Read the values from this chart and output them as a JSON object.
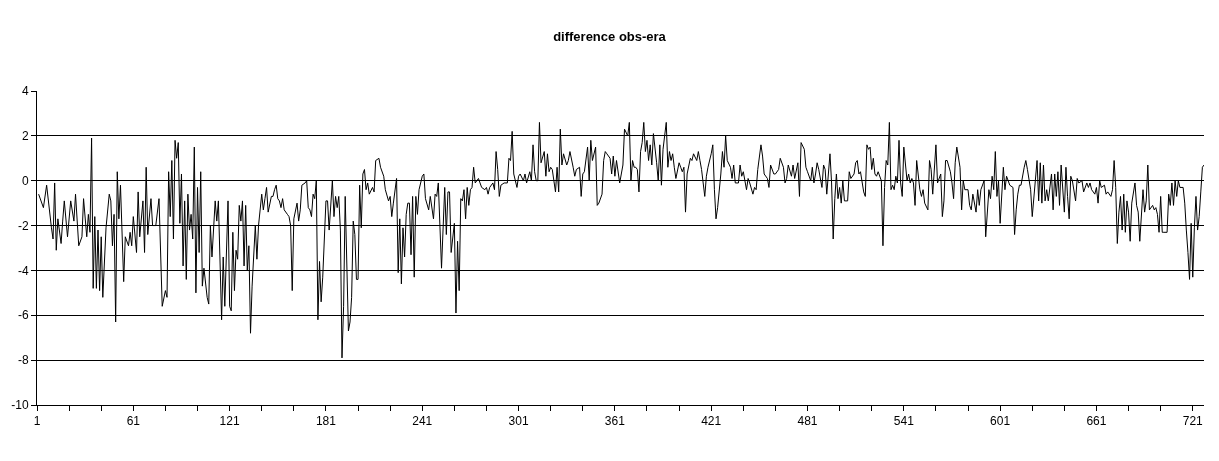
{
  "chart_data": {
    "type": "line",
    "title": "difference obs-era",
    "color": "#000000",
    "grid": "y",
    "marker": "none",
    "line_style": "solid",
    "xlim": [
      1,
      728
    ],
    "ylim": [
      -10,
      4
    ],
    "yticks": [
      -10,
      -8,
      -6,
      -4,
      -2,
      0,
      2,
      4
    ],
    "xticks": [
      1,
      {
        "value": 21,
        "label": null
      },
      {
        "value": 41,
        "label": null
      },
      61,
      {
        "value": 81,
        "label": null
      },
      {
        "value": 101,
        "label": null
      },
      121,
      {
        "value": 141,
        "label": null
      },
      {
        "value": 161,
        "label": null
      },
      181,
      {
        "value": 201,
        "label": null
      },
      {
        "value": 221,
        "label": null
      },
      241,
      {
        "value": 261,
        "label": null
      },
      {
        "value": 281,
        "label": null
      },
      301,
      {
        "value": 321,
        "label": null
      },
      {
        "value": 341,
        "label": null
      },
      361,
      {
        "value": 381,
        "label": null
      },
      {
        "value": 401,
        "label": null
      },
      421,
      {
        "value": 441,
        "label": null
      },
      {
        "value": 461,
        "label": null
      },
      481,
      {
        "value": 501,
        "label": null
      },
      {
        "value": 521,
        "label": null
      },
      541,
      {
        "value": 561,
        "label": null
      },
      {
        "value": 581,
        "label": null
      },
      601,
      {
        "value": 621,
        "label": null
      },
      {
        "value": 641,
        "label": null
      },
      661,
      {
        "value": 681,
        "label": null
      },
      {
        "value": 701,
        "label": null
      },
      721
    ],
    "x": [
      2,
      5,
      7,
      10,
      11,
      12,
      13,
      14,
      16,
      17,
      18,
      20,
      22,
      24,
      25,
      27,
      29,
      30,
      32,
      33,
      34,
      35,
      36,
      37,
      38,
      39,
      40,
      41,
      42,
      44,
      46,
      47,
      48,
      49,
      50,
      51,
      52,
      53,
      55,
      56,
      58,
      59,
      60,
      61,
      63,
      64,
      65,
      67,
      68,
      69,
      70,
      72,
      73,
      75,
      77,
      79,
      81,
      82,
      83,
      84,
      85,
      86,
      87,
      88,
      89,
      90,
      91,
      92,
      93,
      94,
      95,
      96,
      97,
      98,
      99,
      100,
      101,
      102,
      103,
      104,
      105,
      107,
      108,
      109,
      110,
      112,
      113,
      114,
      116,
      117,
      118,
      120,
      121,
      122,
      123,
      124,
      125,
      126,
      127,
      128,
      129,
      130,
      131,
      132,
      133,
      134,
      135,
      137,
      138,
      139,
      141,
      142,
      143,
      144,
      145,
      147,
      148,
      149,
      150,
      151,
      152,
      153,
      154,
      155,
      157,
      158,
      159,
      160,
      161,
      163,
      164,
      165,
      166,
      168,
      169,
      170,
      171,
      172,
      173,
      174,
      175,
      176,
      177,
      178,
      179,
      181,
      182,
      183,
      185,
      186,
      187,
      188,
      189,
      190,
      191,
      192,
      193,
      195,
      196,
      197,
      198,
      199,
      200,
      201,
      202,
      203,
      204,
      205,
      206,
      207,
      208,
      210,
      211,
      212,
      214,
      215,
      217,
      218,
      220,
      221,
      222,
      223,
      225,
      226,
      227,
      228,
      229,
      230,
      231,
      232,
      233,
      234,
      235,
      236,
      237,
      238,
      239,
      241,
      242,
      243,
      245,
      246,
      248,
      249,
      250,
      251,
      253,
      255,
      256,
      257,
      258,
      259,
      261,
      262,
      263,
      264,
      265,
      266,
      267,
      268,
      269,
      270,
      271,
      272,
      273,
      274,
      276,
      277,
      278,
      280,
      281,
      282,
      283,
      285,
      286,
      287,
      288,
      289,
      290,
      292,
      294,
      295,
      296,
      297,
      298,
      300,
      301,
      302,
      304,
      305,
      306,
      308,
      309,
      310,
      311,
      312,
      313,
      314,
      315,
      317,
      318,
      319,
      320,
      321,
      322,
      324,
      325,
      326,
      327,
      328,
      329,
      331,
      332,
      333,
      335,
      336,
      337,
      339,
      340,
      341,
      342,
      344,
      345,
      346,
      347,
      349,
      350,
      351,
      353,
      354,
      355,
      356,
      358,
      359,
      360,
      361,
      362,
      364,
      366,
      367,
      369,
      370,
      371,
      372,
      373,
      374,
      375,
      376,
      377,
      378,
      379,
      380,
      381,
      382,
      383,
      384,
      385,
      387,
      388,
      389,
      390,
      391,
      393,
      394,
      395,
      396,
      397,
      398,
      399,
      401,
      402,
      403,
      404,
      405,
      406,
      408,
      409,
      410,
      412,
      413,
      414,
      415,
      417,
      418,
      419,
      421,
      422,
      423,
      424,
      425,
      427,
      428,
      429,
      430,
      431,
      433,
      434,
      435,
      436,
      438,
      439,
      440,
      441,
      443,
      444,
      445,
      447,
      448,
      449,
      450,
      452,
      453,
      454,
      456,
      457,
      458,
      460,
      461,
      463,
      464,
      466,
      467,
      468,
      469,
      471,
      472,
      473,
      475,
      476,
      477,
      479,
      480,
      481,
      483,
      484,
      485,
      486,
      487,
      488,
      490,
      491,
      492,
      493,
      495,
      496,
      497,
      498,
      499,
      500,
      501,
      502,
      503,
      504,
      506,
      507,
      508,
      510,
      511,
      512,
      513,
      514,
      516,
      517,
      518,
      519,
      520,
      521,
      522,
      523,
      524,
      525,
      527,
      528,
      529,
      530,
      531,
      532,
      533,
      534,
      535,
      536,
      537,
      538,
      539,
      540,
      541,
      543,
      544,
      545,
      546,
      547,
      548,
      549,
      551,
      552,
      553,
      554,
      556,
      557,
      558,
      559,
      561,
      562,
      564,
      565,
      566,
      567,
      568,
      570,
      571,
      572,
      573,
      574,
      576,
      577,
      578,
      579,
      581,
      582,
      583,
      584,
      586,
      587,
      588,
      589,
      591,
      592,
      594,
      595,
      596,
      597,
      598,
      599,
      600,
      601,
      603,
      604,
      605,
      606,
      607,
      609,
      610,
      611,
      612,
      613,
      614,
      616,
      617,
      618,
      620,
      621,
      624,
      625,
      626,
      627,
      628,
      629,
      630,
      631,
      633,
      634,
      635,
      636,
      637,
      638,
      639,
      641,
      642,
      643,
      644,
      645,
      646,
      648,
      649,
      650,
      652,
      653,
      655,
      656,
      657,
      658,
      660,
      661,
      662,
      663,
      664,
      666,
      667,
      668,
      670,
      671,
      672,
      673,
      674,
      675,
      676,
      677,
      678,
      679,
      680,
      681,
      682,
      683,
      685,
      686,
      687,
      688,
      690,
      691,
      692,
      693,
      694,
      696,
      697,
      698,
      699,
      700,
      701,
      702,
      703,
      705,
      706,
      707,
      708,
      709,
      710,
      711,
      712,
      713,
      715,
      716,
      717,
      718,
      719,
      720,
      721,
      722,
      723,
      724,
      725,
      726,
      727,
      728
    ],
    "values": [
      -0.6,
      -1.2,
      -0.2,
      -2.1,
      -2.6,
      -0.1,
      -3.1,
      -1.7,
      -2.8,
      -1.8,
      -0.9,
      -2.5,
      -0.9,
      -1.8,
      -0.6,
      -2.9,
      -2.5,
      -0.8,
      -2.5,
      -1.5,
      -2.3,
      1.9,
      -4.8,
      -1.6,
      -4.8,
      -2.2,
      -4.9,
      -2.5,
      -5.2,
      -2.1,
      -0.6,
      -0.9,
      -2.9,
      -1.5,
      -6.3,
      0.4,
      -1.7,
      -0.2,
      -4.5,
      -2.5,
      -2.9,
      -2.3,
      -2.9,
      -1.6,
      -3.2,
      -0.5,
      -2.5,
      -0.9,
      -3.2,
      0.6,
      -2.4,
      -0.8,
      -2.0,
      -2.0,
      -0.8,
      -5.6,
      -4.9,
      -5.2,
      0.4,
      -1.6,
      0.9,
      -2.6,
      1.8,
      1.0,
      1.7,
      -1.9,
      0.3,
      -3.8,
      -0.9,
      -4.4,
      -0.6,
      -2.2,
      -1.5,
      -2.6,
      1.5,
      -5.0,
      -0.3,
      -3.2,
      0.4,
      -4.7,
      -3.9,
      -5.2,
      -5.5,
      -2.0,
      -3.4,
      -0.9,
      -1.8,
      -0.9,
      -6.2,
      -3.4,
      -5.6,
      -0.9,
      -5.6,
      -5.8,
      -2.3,
      -4.9,
      -3.1,
      -3.5,
      -1.1,
      -1.8,
      -0.9,
      -3.8,
      -1.1,
      -4.0,
      -2.9,
      -6.8,
      -4.7,
      -2.0,
      -3.5,
      -2.0,
      -0.6,
      -1.3,
      -0.8,
      -0.3,
      -1.4,
      -0.7,
      -0.7,
      -0.4,
      -0.2,
      -0.8,
      -0.9,
      -1.2,
      -0.8,
      -1.3,
      -1.5,
      -1.6,
      -2.0,
      -4.9,
      -1.7,
      -1.0,
      -1.8,
      -1.3,
      -0.2,
      -0.1,
      0.0,
      -1.2,
      -1.3,
      -1.6,
      -0.6,
      -0.8,
      0.0,
      -6.2,
      -3.6,
      -5.4,
      -4.3,
      -0.9,
      -0.9,
      -2.2,
      0.0,
      -1.6,
      -0.7,
      -1.2,
      -0.7,
      -2.2,
      -7.9,
      -5.6,
      -0.7,
      -6.7,
      -6.3,
      -5.2,
      -1.8,
      -2.4,
      -4.4,
      -4.4,
      -0.2,
      -2.1,
      0.3,
      0.5,
      -0.4,
      -0.1,
      -0.6,
      -0.3,
      -0.5,
      0.9,
      1.0,
      0.6,
      0.2,
      -0.4,
      -0.9,
      -0.7,
      -1.6,
      -1.0,
      0.1,
      -4.1,
      -1.7,
      -4.6,
      -2.1,
      -3.4,
      -1.5,
      -1.0,
      -1.0,
      -3.3,
      -0.7,
      -4.3,
      -0.7,
      -1.5,
      -0.4,
      0.2,
      0.3,
      -0.8,
      -1.3,
      -0.7,
      -1.7,
      -0.6,
      -0.7,
      -0.1,
      -3.9,
      -0.3,
      -2.4,
      -0.5,
      -0.5,
      -3.2,
      -1.9,
      -5.9,
      -2.7,
      -4.9,
      -0.8,
      -0.9,
      -0.4,
      -1.7,
      -0.3,
      -1.1,
      -0.4,
      -0.3,
      0.6,
      -0.1,
      0.1,
      -0.1,
      -0.3,
      -0.4,
      -0.3,
      -0.6,
      -0.3,
      -0.1,
      -0.4,
      1.3,
      0.5,
      -0.7,
      -0.2,
      -0.1,
      -0.1,
      1.0,
      0.9,
      2.2,
      0.3,
      -0.3,
      0.2,
      0.3,
      0.0,
      0.3,
      -0.1,
      0.4,
      0.0,
      1.6,
      0.4,
      0.0,
      0.0,
      2.6,
      0.8,
      1.3,
      0.2,
      1.2,
      0.4,
      0.6,
      0.5,
      -0.5,
      0.6,
      -0.5,
      2.3,
      0.7,
      1.2,
      0.7,
      0.9,
      1.3,
      0.6,
      0.2,
      0.5,
      0.6,
      -0.7,
      0.3,
      0.4,
      1.5,
      0.0,
      1.8,
      0.9,
      1.5,
      -1.1,
      -1.0,
      -0.6,
      0.9,
      1.3,
      1.2,
      1.0,
      0.3,
      1.1,
      0.2,
      0.9,
      -0.1,
      0.7,
      2.3,
      2.0,
      2.6,
      0.0,
      0.9,
      0.6,
      0.6,
      0.5,
      -0.5,
      1.3,
      1.7,
      2.6,
      1.3,
      1.8,
      0.9,
      1.6,
      0.7,
      2.1,
      0.8,
      0.0,
      1.6,
      -0.2,
      1.4,
      2.6,
      0.6,
      1.3,
      0.9,
      1.2,
      0.6,
      0.1,
      0.8,
      0.6,
      0.4,
      0.6,
      -1.4,
      0.3,
      1.0,
      0.9,
      1.2,
      0.9,
      1.3,
      0.9,
      0.5,
      -0.7,
      0.2,
      0.6,
      1.2,
      1.6,
      -0.4,
      -1.7,
      -1.2,
      0.3,
      1.3,
      0.6,
      2.0,
      0.9,
      0.6,
      0.1,
      0.7,
      -0.1,
      -0.1,
      0.7,
      0.2,
      0.4,
      -0.4,
      0.1,
      -0.1,
      -0.6,
      -0.3,
      -0.4,
      0.5,
      1.6,
      1.1,
      0.3,
      0.1,
      -0.3,
      0.7,
      0.3,
      0.3,
      0.5,
      1.0,
      0.6,
      -0.1,
      0.1,
      0.7,
      0.2,
      0.7,
      0.1,
      0.8,
      -0.7,
      1.7,
      1.4,
      0.6,
      0.4,
      0.0,
      0.6,
      -0.1,
      0.3,
      0.8,
      0.5,
      -0.3,
      0.7,
      0.5,
      -0.6,
      1.2,
      -0.1,
      -2.6,
      -0.8,
      0.3,
      -0.8,
      -0.3,
      -1.0,
      0.0,
      -0.9,
      -0.9,
      0.4,
      0.1,
      0.3,
      0.8,
      0.9,
      0.3,
      0.4,
      -0.5,
      -0.7,
      1.6,
      1.4,
      1.5,
      0.5,
      1.0,
      0.3,
      0.2,
      0.4,
      0.0,
      -2.9,
      -0.3,
      0.9,
      0.7,
      2.6,
      -0.4,
      -0.2,
      -0.4,
      0.2,
      -0.1,
      1.8,
      -0.1,
      -0.7,
      1.5,
      0.0,
      0.3,
      -0.1,
      0.1,
      -0.1,
      -1.1,
      0.9,
      -0.4,
      -0.7,
      -0.4,
      -1.0,
      -1.3,
      0.9,
      0.5,
      -0.6,
      1.6,
      -0.1,
      0.3,
      -1.6,
      -0.9,
      0.9,
      0.9,
      0.4,
      -0.1,
      -0.8,
      0.8,
      1.5,
      0.6,
      -1.3,
      0.0,
      -0.4,
      -0.4,
      -1.1,
      -1.3,
      -0.6,
      -1.4,
      -0.4,
      -1.1,
      -0.4,
      0.0,
      -2.5,
      -0.4,
      -0.8,
      0.2,
      -0.4,
      1.3,
      -0.7,
      0.0,
      -1.9,
      0.6,
      -0.4,
      0.2,
      0.0,
      -0.2,
      -0.3,
      -2.4,
      -1.3,
      -0.6,
      -0.2,
      -0.2,
      0.6,
      0.9,
      0.5,
      -0.4,
      -1.6,
      0.9,
      -0.9,
      0.8,
      -1.0,
      0.7,
      -0.9,
      -0.4,
      -0.9,
      0.3,
      -1.3,
      0.3,
      -0.7,
      0.4,
      -1.1,
      0.7,
      -1.4,
      0.6,
      -0.7,
      -1.7,
      0.2,
      0.0,
      -0.9,
      0.1,
      -0.1,
      0.0,
      -0.5,
      -0.1,
      -0.3,
      -0.1,
      -0.4,
      -0.6,
      -0.3,
      -1.0,
      0.0,
      -0.3,
      -0.2,
      -0.6,
      -0.5,
      -0.7,
      -0.4,
      0.9,
      -0.3,
      -2.8,
      -1.4,
      -0.7,
      -2.2,
      -0.6,
      -2.3,
      -0.9,
      -1.4,
      -2.7,
      -1.0,
      -0.1,
      -1.1,
      -1.4,
      -2.7,
      -0.4,
      -1.4,
      -0.9,
      0.7,
      -1.3,
      -1.1,
      -1.3,
      -1.2,
      -1.5,
      -2.3,
      -0.7,
      -2.3,
      -2.3,
      -2.3,
      -0.6,
      -1.1,
      -0.1,
      -1.1,
      0.0,
      -0.7,
      0.0,
      -0.3,
      -0.3,
      -1.0,
      -2.2,
      -3.2,
      -4.4,
      -1.9,
      -4.3,
      -2.1,
      -0.7,
      -2.2,
      -1.6,
      -0.5,
      0.6,
      0.7
    ]
  }
}
